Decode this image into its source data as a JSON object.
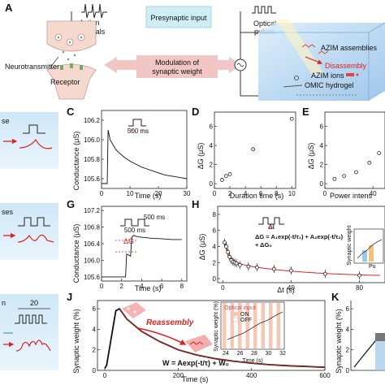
{
  "panel_a": {
    "letter": "A",
    "presynaptic_input": "Presynaptic input",
    "action_potentials_1": "Action",
    "action_potentials_2": "potentials",
    "optical_pulses_1": "Optical",
    "optical_pulses_2": "pulses",
    "neurotransmitter": "Neurotransmitter",
    "receptor": "Receptor",
    "modulation_1": "Modulation of",
    "modulation_2": "synaptic weight",
    "azim_assemblies": "AZIM assemblies",
    "disassembly": "Disassembly",
    "azim_ions": "AZIM ions",
    "omic_hydrogel": "OMIC hydrogel",
    "colors": {
      "presyn_box": "#cfeef4",
      "modulation_box": "#f3c6c6",
      "disassembly": "#d22",
      "hydrogel": "#9fc9ec"
    }
  },
  "left_strips": {
    "row1": "se",
    "row2": "ses",
    "row3_label": "n",
    "row3_value": "20"
  },
  "panel_c": {
    "letter": "C",
    "ylabel": "Conductance (μS)",
    "xlabel": "Time (s)",
    "pulse_label": "500 ms",
    "chart_data": {
      "type": "line",
      "x_ticks": [
        "0",
        "10",
        "20",
        "30"
      ],
      "y_ticks": [
        "105.6",
        "105.8",
        "106.0",
        "106.2"
      ],
      "xlim": [
        0,
        30
      ],
      "ylim": [
        105.5,
        106.3
      ],
      "series": [
        {
          "x": [
            0,
            2,
            2.3,
            3,
            4,
            5,
            6,
            8,
            10,
            12,
            14,
            16,
            18,
            20,
            22,
            24,
            26,
            28,
            30
          ],
          "y": [
            105.55,
            105.55,
            106.1,
            106.0,
            105.95,
            105.9,
            105.87,
            105.82,
            105.78,
            105.75,
            105.72,
            105.7,
            105.68,
            105.66,
            105.64,
            105.63,
            105.62,
            105.61,
            105.6
          ]
        }
      ]
    }
  },
  "panel_d": {
    "letter": "D",
    "ylabel": "ΔG (μS)",
    "xlabel": "Duration time (s)",
    "chart_data": {
      "type": "scatter",
      "x_ticks": [
        "0",
        "2",
        "4",
        "6",
        "8",
        "10"
      ],
      "y_ticks": [
        "0",
        "2",
        "4",
        "6"
      ],
      "xlim": [
        0,
        10.5
      ],
      "ylim": [
        -0.5,
        7.5
      ],
      "x": [
        1,
        1.5,
        2,
        5,
        10
      ],
      "y": [
        0.4,
        0.8,
        1.0,
        3.6,
        6.8
      ]
    }
  },
  "panel_e": {
    "letter": "E",
    "ylabel": "ΔG (μS)",
    "xlabel": "Power intens",
    "chart_data": {
      "type": "scatter",
      "x_ticks": [
        "0",
        "40"
      ],
      "y_ticks": [
        "0",
        "2",
        "4",
        "6"
      ],
      "xlim": [
        0,
        50
      ],
      "ylim": [
        -0.5,
        7.5
      ],
      "x": [
        8,
        16,
        26,
        37,
        45
      ],
      "y": [
        0.5,
        0.8,
        1.2,
        2.2,
        3.2
      ]
    }
  },
  "panel_g": {
    "letter": "G",
    "ylabel": "Conductance (μS)",
    "xlabel": "Time (s)",
    "pulse_label_1": "500 ms",
    "pulse_label_2": "500 ms",
    "delta_g": "ΔG",
    "chart_data": {
      "type": "line",
      "x_ticks": [
        "0",
        "2",
        "4",
        "6",
        "8"
      ],
      "y_ticks": [
        "105.6",
        "106.0",
        "106.4",
        "106.8",
        "107.2"
      ],
      "xlim": [
        0,
        8.5
      ],
      "ylim": [
        105.5,
        107.3
      ],
      "series": [
        {
          "x": [
            0,
            2.4,
            2.5,
            2.9,
            3.0,
            3.2,
            3.4,
            3.6,
            3.8,
            4.2,
            5,
            6,
            7,
            8
          ],
          "y": [
            105.6,
            105.6,
            106.15,
            106.1,
            106.55,
            106.6,
            106.58,
            106.57,
            106.56,
            106.55,
            106.53,
            106.52,
            106.5,
            106.5
          ]
        }
      ]
    }
  },
  "panel_h": {
    "letter": "H",
    "ylabel": "ΔG (μS)",
    "xlabel": "Δt (s)",
    "pulse_label": "Δt",
    "equation_1": "ΔG = A₁exp(-t/τ₁) + A₂exp(-t/τ₂)",
    "equation_2": "+ ΔG₀",
    "inset_ylabel": "Synaptic weight",
    "inset_xlabel": "Pu",
    "chart_data": {
      "type": "scatter",
      "x_ticks": [
        "0",
        "40",
        "80"
      ],
      "y_ticks": [
        "0",
        "2",
        "4",
        "6",
        "8"
      ],
      "xlim": [
        -3,
        95
      ],
      "ylim": [
        -0.5,
        9
      ],
      "x": [
        1,
        2,
        3,
        4,
        5,
        6,
        7,
        8,
        10,
        15,
        20,
        30,
        40,
        60,
        80
      ],
      "y": [
        4.5,
        4.0,
        3.3,
        2.7,
        2.3,
        2.1,
        2.0,
        1.9,
        1.7,
        1.5,
        1.4,
        1.2,
        1.0,
        0.6,
        0.4
      ]
    }
  },
  "panel_j": {
    "letter": "J",
    "ylabel": "Synaptic weight (%)",
    "xlabel": "Time (s)",
    "reassembly": "Reassembly",
    "equation": "W = Aexp(-t/τ) + W₀",
    "inset_legend_title": "Optical input",
    "inset_on": "ON",
    "inset_off": "OFF",
    "inset_ylabel": "Synaptic weight (%)",
    "inset_xlabel": "Time (s)",
    "inset_x_ticks": [
      "24",
      "26",
      "28",
      "30",
      "32"
    ],
    "chart_data": {
      "type": "line",
      "x_ticks": [
        "0",
        "200",
        "400",
        "600"
      ],
      "y_ticks": [
        "0",
        "2",
        "4",
        "6"
      ],
      "xlim": [
        -20,
        600
      ],
      "ylim": [
        0,
        6.8
      ],
      "series": [
        {
          "x": [
            0,
            5,
            30,
            40,
            60,
            100,
            150,
            200,
            250,
            300,
            350,
            400,
            450,
            500,
            550,
            600
          ],
          "y": [
            0.2,
            0.5,
            5.8,
            6.0,
            5.0,
            3.8,
            2.8,
            2.0,
            1.5,
            1.15,
            0.9,
            0.7,
            0.55,
            0.45,
            0.38,
            0.3
          ]
        }
      ]
    }
  },
  "panel_k": {
    "letter": "K",
    "ylabel": "Synaptic weight (%)",
    "chart_data": {
      "type": "line",
      "y_ticks": [
        "0",
        "2",
        "4",
        "6"
      ],
      "ylim": [
        0,
        6.8
      ]
    }
  }
}
